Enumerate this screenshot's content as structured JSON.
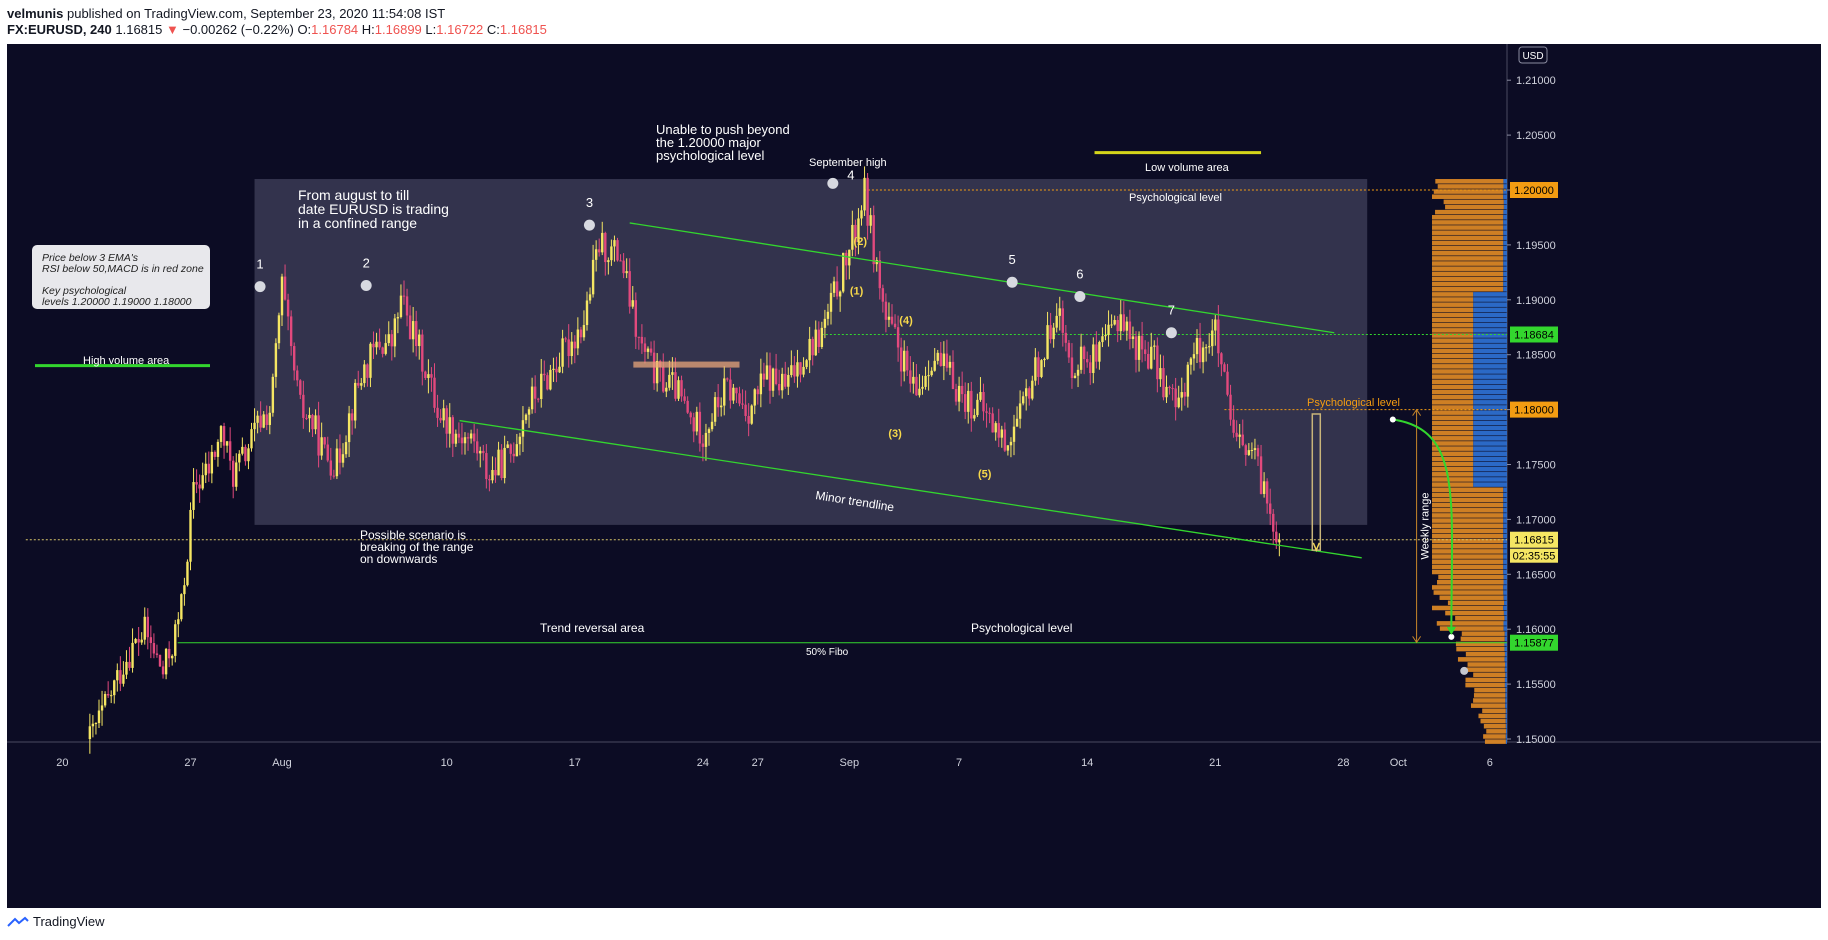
{
  "header": {
    "author": "velmunis",
    "published": "published on TradingView.com, September 23, 2020 11:54:08 IST",
    "symbol": "FX:EURUSD, 240",
    "last": "1.16815",
    "change_arrow": "▼",
    "change": "−0.00262 (−0.22%)",
    "o_label": "O:",
    "o": "1.16784",
    "h_label": "H:",
    "h": "1.16899",
    "l_label": "L:",
    "l": "1.16722",
    "c_label": "C:",
    "c": "1.16815"
  },
  "footer": {
    "brand": "TradingView",
    "logo_icon": "tradingview-logo-icon"
  },
  "colors": {
    "background": "#0c0c24",
    "bull": "#f5e663",
    "bear": "#e2497d",
    "trend": "#33d62e",
    "orange": "#f39c12",
    "box": "#3b3b55",
    "volume_blue": "#2d6fd0",
    "volume_orange": "#e38c25"
  },
  "chart_data": {
    "type": "candlestick",
    "symbol": "FX:EURUSD",
    "interval": "240",
    "currency": "USD",
    "ylim": [
      1.1495,
      1.2135
    ],
    "y_ticks": [
      "1.21000",
      "1.20500",
      "1.20000",
      "1.19500",
      "1.19000",
      "1.18500",
      "1.18000",
      "1.17500",
      "1.17000",
      "1.16500",
      "1.16000",
      "1.15500",
      "1.15000"
    ],
    "x_ticks": [
      {
        "label": "20",
        "day": -12
      },
      {
        "label": "27",
        "day": -5
      },
      {
        "label": "Aug",
        "day": 0
      },
      {
        "label": "10",
        "day": 9
      },
      {
        "label": "17",
        "day": 16
      },
      {
        "label": "24",
        "day": 23
      },
      {
        "label": "27",
        "day": 26
      },
      {
        "label": "Sep",
        "day": 31
      },
      {
        "label": "7",
        "day": 37
      },
      {
        "label": "14",
        "day": 44
      },
      {
        "label": "21",
        "day": 51
      },
      {
        "label": "28",
        "day": 58
      },
      {
        "label": "Oct",
        "day": 61
      },
      {
        "label": "6",
        "day": 66
      }
    ],
    "price_path": [
      [
        -10.5,
        1.15
      ],
      [
        -9.5,
        1.1535
      ],
      [
        -8.5,
        1.1575
      ],
      [
        -7.5,
        1.1598
      ],
      [
        -6.5,
        1.156
      ],
      [
        -6,
        1.1585
      ],
      [
        -5.5,
        1.162
      ],
      [
        -4.8,
        1.173
      ],
      [
        -4,
        1.1745
      ],
      [
        -3.3,
        1.178
      ],
      [
        -2.7,
        1.174
      ],
      [
        -2,
        1.176
      ],
      [
        -1.2,
        1.179
      ],
      [
        -0.6,
        1.18
      ],
      [
        -0.3,
        1.186
      ],
      [
        0,
        1.1912
      ],
      [
        0.5,
        1.185
      ],
      [
        1,
        1.18
      ],
      [
        1.6,
        1.179
      ],
      [
        2.3,
        1.176
      ],
      [
        3,
        1.175
      ],
      [
        3.6,
        1.179
      ],
      [
        4.3,
        1.183
      ],
      [
        5.3,
        1.186
      ],
      [
        6,
        1.186
      ],
      [
        6.5,
        1.19
      ],
      [
        7.2,
        1.1868
      ],
      [
        7.8,
        1.184
      ],
      [
        8.5,
        1.18
      ],
      [
        9.5,
        1.178
      ],
      [
        10.5,
        1.177
      ],
      [
        11.3,
        1.174
      ],
      [
        12.5,
        1.176
      ],
      [
        13.3,
        1.18
      ],
      [
        14.5,
        1.183
      ],
      [
        15.5,
        1.1855
      ],
      [
        16.5,
        1.188
      ],
      [
        17.3,
        1.195
      ],
      [
        18.5,
        1.194
      ],
      [
        19.5,
        1.186
      ],
      [
        20.5,
        1.183
      ],
      [
        21.5,
        1.182
      ],
      [
        22.3,
        1.179
      ],
      [
        23,
        1.178
      ],
      [
        24.3,
        1.182
      ],
      [
        25.5,
        1.18
      ],
      [
        26.5,
        1.183
      ],
      [
        27.5,
        1.182
      ],
      [
        28.5,
        1.185
      ],
      [
        29.5,
        1.187
      ],
      [
        30.3,
        1.191
      ],
      [
        31.3,
        1.196
      ],
      [
        31.8,
        1.2
      ],
      [
        32.3,
        1.195
      ],
      [
        33,
        1.188
      ],
      [
        33.6,
        1.186
      ],
      [
        34.6,
        1.181
      ],
      [
        35.5,
        1.185
      ],
      [
        36.5,
        1.183
      ],
      [
        37.3,
        1.181
      ],
      [
        38.3,
        1.18
      ],
      [
        39.5,
        1.177
      ],
      [
        40.3,
        1.179
      ],
      [
        41,
        1.183
      ],
      [
        41.8,
        1.186
      ],
      [
        42.3,
        1.19
      ],
      [
        43,
        1.184
      ],
      [
        43.8,
        1.185
      ],
      [
        44.6,
        1.1845
      ],
      [
        45.3,
        1.187
      ],
      [
        45.8,
        1.189
      ],
      [
        46.5,
        1.186
      ],
      [
        47.5,
        1.185
      ],
      [
        48.3,
        1.182
      ],
      [
        49,
        1.18
      ],
      [
        49.5,
        1.184
      ],
      [
        50.3,
        1.186
      ],
      [
        51,
        1.187
      ],
      [
        51.5,
        1.182
      ],
      [
        52,
        1.177
      ],
      [
        53,
        1.176
      ],
      [
        53.6,
        1.173
      ],
      [
        54.2,
        1.17
      ],
      [
        54.6,
        1.1682
      ]
    ],
    "current_price": "1.16815",
    "countdown": "02:35:55",
    "price_labels": [
      {
        "price": 1.2,
        "text": "1.20000",
        "style": "orange"
      },
      {
        "price": 1.18684,
        "text": "1.18684",
        "style": "green"
      },
      {
        "price": 1.18,
        "text": "1.18000",
        "style": "orange"
      },
      {
        "price": 1.16815,
        "text": "1.16815",
        "style": "yellow"
      },
      {
        "price": 1.15877,
        "text": "1.15877",
        "style": "green"
      }
    ],
    "horizontal_levels": [
      {
        "price": 1.2,
        "from_day": 31.8,
        "style": "orange-dotted"
      },
      {
        "price": 1.18684,
        "from_day": 29.5,
        "style": "green-dotted"
      },
      {
        "price": 1.18,
        "from_day": 51.5,
        "style": "orange-dotted"
      },
      {
        "price": 1.16815,
        "from_day": -14,
        "style": "yellow-dotted"
      },
      {
        "price": 1.15877,
        "from_day": -5.7,
        "style": "green-solid"
      }
    ],
    "range_box": {
      "day1": -1.5,
      "day2": 59.3,
      "price_top": 1.201,
      "price_bottom": 1.1695
    },
    "trendlines": [
      {
        "name": "Upper channel",
        "p1": [
          19,
          1.197
        ],
        "p2": [
          57.5,
          1.187
        ]
      },
      {
        "name": "Minor trendline",
        "p1": [
          9.7,
          1.179
        ],
        "p2": [
          59,
          1.1665
        ]
      }
    ],
    "swing_points": [
      {
        "label": "1",
        "day": -1.2,
        "price": 1.1912
      },
      {
        "label": "2",
        "day": 4.6,
        "price": 1.1913
      },
      {
        "label": "3",
        "day": 16.8,
        "price": 1.1968
      },
      {
        "label": "4",
        "day": 30.1,
        "price": 1.2006
      },
      {
        "label": "5",
        "day": 39.9,
        "price": 1.1916
      },
      {
        "label": "6",
        "day": 43.6,
        "price": 1.1903
      },
      {
        "label": "7",
        "day": 48.6,
        "price": 1.187
      }
    ],
    "sub_waves": [
      {
        "label": "(1)",
        "day": 31.4,
        "price": 1.1905
      },
      {
        "label": "(2)",
        "day": 31.6,
        "price": 1.195
      },
      {
        "label": "(3)",
        "day": 33.5,
        "price": 1.1775
      },
      {
        "label": "(4)",
        "day": 34.1,
        "price": 1.1878
      },
      {
        "label": "(5)",
        "day": 38.4,
        "price": 1.1738
      }
    ],
    "weekly_range": {
      "day": 62,
      "top": 1.18,
      "bottom": 1.1588,
      "label": "Weekly range"
    },
    "projection": {
      "from": [
        60.7,
        1.1791
      ],
      "to": [
        63.9,
        1.1593
      ]
    },
    "marker_after": {
      "day": 64.6,
      "price": 1.1562
    },
    "annotations": {
      "info_box": [
        "Price below 3 EMA's",
        "RSI below 50,MACD is in red zone",
        "",
        "Key psychological",
        "levels 1.20000 1.19000 1.18000"
      ],
      "range_note": [
        "From august to till",
        "date EURUSD is trading",
        "in a confined range"
      ],
      "unable_note": [
        "Unable to push beyond",
        "the 1.20000 major",
        "psychological level"
      ],
      "september_high": "September high",
      "low_volume": "Low volume area",
      "psych_top": "Psychological level",
      "high_volume": "High volume area",
      "psych_right": "Psychological level",
      "minor_trendline": "Minor trendline",
      "scenario": [
        "Possible scenario is",
        "breaking of the range",
        "on downwards"
      ],
      "trend_reversal": "Trend reversal area",
      "psych_bottom": "Psychological level",
      "fibo": "50% Fibo"
    },
    "volume_profile": {
      "price_min": 1.1495,
      "price_max": 1.201,
      "rows": 110,
      "nodes": [
        {
          "price": 1.185,
          "weight": 1.0,
          "width": 0.022
        },
        {
          "price": 1.18,
          "weight": 0.85,
          "width": 0.008
        },
        {
          "price": 1.174,
          "weight": 0.55,
          "width": 0.012
        },
        {
          "price": 1.19,
          "weight": 0.32,
          "width": 0.008
        },
        {
          "price": 1.195,
          "weight": 0.18,
          "width": 0.01
        },
        {
          "price": 1.16,
          "weight": 0.15,
          "width": 0.01
        },
        {
          "price": 1.153,
          "weight": 0.07,
          "width": 0.012
        },
        {
          "price": 1.168,
          "weight": 0.12,
          "width": 0.02
        }
      ]
    }
  }
}
